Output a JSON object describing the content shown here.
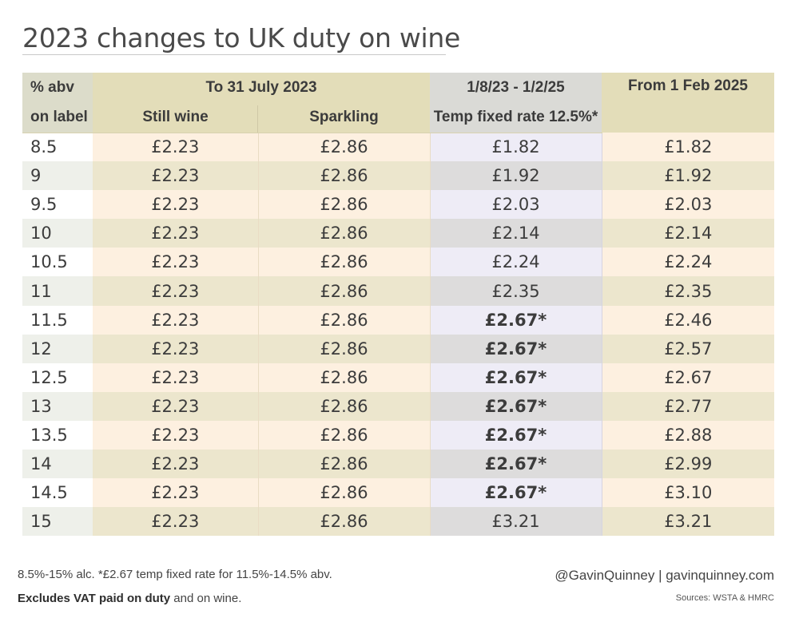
{
  "title": "2023 changes to UK duty on wine",
  "table": {
    "headers": {
      "abv_line1": "% abv",
      "abv_line2": "on label",
      "group_to_july": "To 31 July 2023",
      "still": "Still wine",
      "sparkling": "Sparkling",
      "temp_line1": "1/8/23 - 1/2/25",
      "temp_line2": "Temp fixed rate 12.5%*",
      "from_feb": "From 1 Feb 2025"
    },
    "rows": [
      {
        "abv": "8.5",
        "still": "£2.23",
        "sparkling": "£2.86",
        "temp": "£1.82",
        "temp_bold": false,
        "from": "£1.82"
      },
      {
        "abv": "9",
        "still": "£2.23",
        "sparkling": "£2.86",
        "temp": "£1.92",
        "temp_bold": false,
        "from": "£1.92"
      },
      {
        "abv": "9.5",
        "still": "£2.23",
        "sparkling": "£2.86",
        "temp": "£2.03",
        "temp_bold": false,
        "from": "£2.03"
      },
      {
        "abv": "10",
        "still": "£2.23",
        "sparkling": "£2.86",
        "temp": "£2.14",
        "temp_bold": false,
        "from": "£2.14"
      },
      {
        "abv": "10.5",
        "still": "£2.23",
        "sparkling": "£2.86",
        "temp": "£2.24",
        "temp_bold": false,
        "from": "£2.24"
      },
      {
        "abv": "11",
        "still": "£2.23",
        "sparkling": "£2.86",
        "temp": "£2.35",
        "temp_bold": false,
        "from": "£2.35"
      },
      {
        "abv": "11.5",
        "still": "£2.23",
        "sparkling": "£2.86",
        "temp": "£2.67*",
        "temp_bold": true,
        "from": "£2.46"
      },
      {
        "abv": "12",
        "still": "£2.23",
        "sparkling": "£2.86",
        "temp": "£2.67*",
        "temp_bold": true,
        "from": "£2.57"
      },
      {
        "abv": "12.5",
        "still": "£2.23",
        "sparkling": "£2.86",
        "temp": "£2.67*",
        "temp_bold": true,
        "from": "£2.67"
      },
      {
        "abv": "13",
        "still": "£2.23",
        "sparkling": "£2.86",
        "temp": "£2.67*",
        "temp_bold": true,
        "from": "£2.77"
      },
      {
        "abv": "13.5",
        "still": "£2.23",
        "sparkling": "£2.86",
        "temp": "£2.67*",
        "temp_bold": true,
        "from": "£2.88"
      },
      {
        "abv": "14",
        "still": "£2.23",
        "sparkling": "£2.86",
        "temp": "£2.67*",
        "temp_bold": true,
        "from": "£2.99"
      },
      {
        "abv": "14.5",
        "still": "£2.23",
        "sparkling": "£2.86",
        "temp": "£2.67*",
        "temp_bold": true,
        "from": "£3.10"
      },
      {
        "abv": "15",
        "still": "£2.23",
        "sparkling": "£2.86",
        "temp": "£3.21",
        "temp_bold": false,
        "from": "£3.21"
      }
    ]
  },
  "footer": {
    "note": "8.5%-15% alc. *£2.67 temp fixed rate for 11.5%-14.5% abv.",
    "vat_bold": "Excludes VAT paid on duty",
    "vat_rest": " and on wine.",
    "credit": "@GavinQuinney  |  gavinquinney.com",
    "sources": "Sources: WSTA & HMRC"
  },
  "colors": {
    "header_bg": "#e3ddb9",
    "temp_header_bg": "#dadad6",
    "row_cream": "#fdf0e0",
    "row_tan": "#ece6cd",
    "temp_light": "#eeecf6",
    "temp_grey": "#dddcdc"
  }
}
